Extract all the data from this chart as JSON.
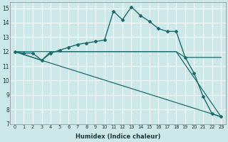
{
  "xlabel": "Humidex (Indice chaleur)",
  "bg_color": "#cce8e8",
  "grid_color": "#ffffff",
  "line_color": "#1a6b6b",
  "xlim": [
    -0.5,
    23.5
  ],
  "ylim": [
    7,
    15.4
  ],
  "xticks": [
    0,
    1,
    2,
    3,
    4,
    5,
    6,
    7,
    8,
    9,
    10,
    11,
    12,
    13,
    14,
    15,
    16,
    17,
    18,
    19,
    20,
    21,
    22,
    23
  ],
  "yticks": [
    7,
    8,
    9,
    10,
    11,
    12,
    13,
    14,
    15
  ],
  "series": [
    {
      "x": [
        0,
        1,
        2,
        3,
        4,
        5,
        6,
        7,
        8,
        9,
        10,
        11,
        12,
        13,
        14,
        15,
        16,
        17,
        18,
        19,
        20,
        21,
        22,
        23
      ],
      "y": [
        12.0,
        11.9,
        11.9,
        11.4,
        11.9,
        12.1,
        12.3,
        12.5,
        12.6,
        12.7,
        12.8,
        14.8,
        14.2,
        15.1,
        14.5,
        14.1,
        13.6,
        13.4,
        13.4,
        11.6,
        10.5,
        8.9,
        7.7,
        7.5
      ],
      "marker": "D",
      "markersize": 2.0,
      "linewidth": 1.0
    },
    {
      "x": [
        0,
        18,
        19,
        23
      ],
      "y": [
        12.0,
        12.0,
        11.6,
        11.6
      ],
      "marker": null,
      "linewidth": 0.9
    },
    {
      "x": [
        0,
        3,
        4,
        18,
        23
      ],
      "y": [
        12.0,
        11.4,
        12.0,
        12.0,
        7.5
      ],
      "marker": null,
      "linewidth": 0.9
    },
    {
      "x": [
        0,
        3,
        23
      ],
      "y": [
        12.0,
        11.4,
        7.5
      ],
      "marker": null,
      "linewidth": 0.9
    }
  ]
}
